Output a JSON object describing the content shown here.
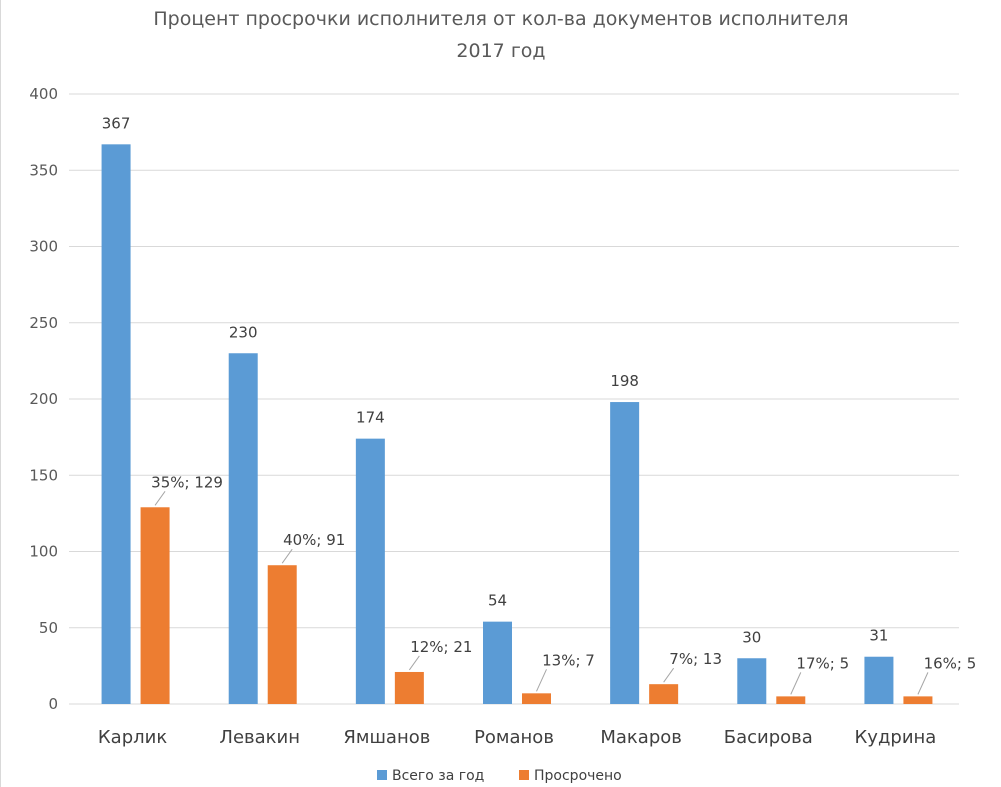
{
  "chart_data": {
    "type": "bar",
    "title": "Процент просрочки исполнителя от кол-ва документов исполнителя",
    "subtitle": "2017 год",
    "categories": [
      "Карлик",
      "Левакин",
      "Ямшанов",
      "Романов",
      "Макаров",
      "Басирова",
      "Кудрина"
    ],
    "series": [
      {
        "name": "Всего за год",
        "color": "#5b9bd5",
        "values": [
          367,
          230,
          174,
          54,
          198,
          30,
          31
        ],
        "labels": [
          "367",
          "230",
          "174",
          "54",
          "198",
          "30",
          "31"
        ]
      },
      {
        "name": "Просрочено",
        "color": "#ed7d31",
        "values": [
          129,
          91,
          21,
          7,
          13,
          5,
          5
        ],
        "labels": [
          "35%; 129",
          "40%; 91",
          "12%; 21",
          "13%; 7",
          "7%; 13",
          "17%; 5",
          "16%; 5"
        ]
      }
    ],
    "ylim": [
      0,
      400
    ],
    "yticks": [
      0,
      50,
      100,
      150,
      200,
      250,
      300,
      350,
      400
    ],
    "grid": true,
    "legend": "bottom"
  }
}
